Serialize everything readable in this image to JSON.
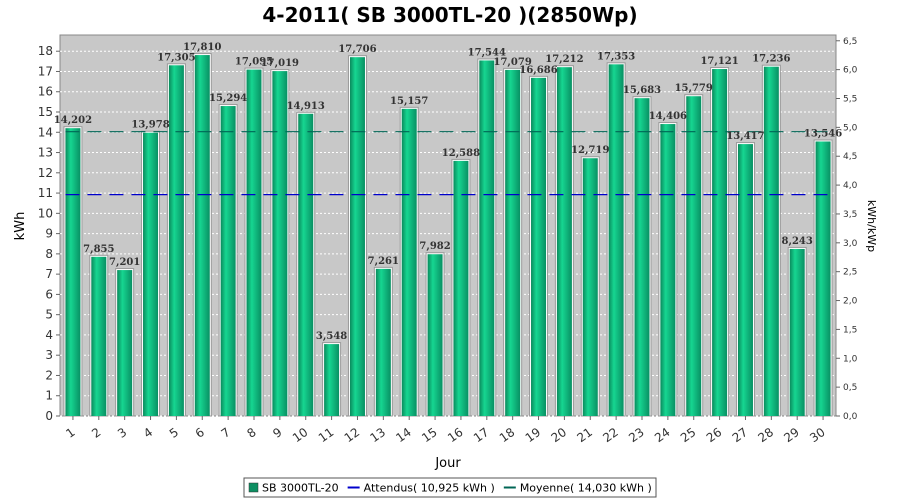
{
  "chart_data": {
    "type": "bar",
    "title": "4-2011( SB 3000TL-20 )(2850Wp)",
    "xlabel": "Jour",
    "ylabel": "kWh",
    "y2label": "kWh/kWp",
    "categories": [
      "1",
      "2",
      "3",
      "4",
      "5",
      "6",
      "7",
      "8",
      "9",
      "10",
      "11",
      "12",
      "13",
      "14",
      "15",
      "16",
      "17",
      "18",
      "19",
      "20",
      "21",
      "22",
      "23",
      "24",
      "25",
      "26",
      "27",
      "28",
      "29",
      "30"
    ],
    "series": [
      {
        "name": "SB 3000TL-20",
        "values": [
          14.202,
          7.855,
          7.201,
          13.978,
          17.305,
          17.81,
          15.294,
          17.095,
          17.019,
          14.913,
          3.548,
          17.706,
          7.261,
          15.157,
          7.982,
          12.588,
          17.544,
          17.079,
          16.686,
          17.212,
          12.719,
          17.353,
          15.683,
          14.406,
          15.779,
          17.121,
          13.417,
          17.236,
          8.243,
          13.546
        ],
        "color": "#0db37a"
      }
    ],
    "value_labels": [
      "14,202",
      "7,855",
      "7,201",
      "13,978",
      "17,305",
      "17,810",
      "15,294",
      "17,095",
      "17,019",
      "14,913",
      "3,548",
      "17,706",
      "7,261",
      "15,157",
      "7,982",
      "12,588",
      "17,544",
      "17,079",
      "16,686",
      "17,212",
      "12,719",
      "17,353",
      "15,683",
      "14,406",
      "15,779",
      "17,121",
      "13,417",
      "17,236",
      "8,243",
      "13,546"
    ],
    "reference_lines": [
      {
        "name": "Attendus",
        "value": 10.925,
        "color": "#0000cc"
      },
      {
        "name": "Moyenne",
        "value": 14.03,
        "color": "#006655"
      }
    ],
    "legend": [
      {
        "label": "SB 3000TL-20",
        "kind": "box",
        "color": "#0d8f62"
      },
      {
        "label": "Attendus( 10,925 kWh )",
        "kind": "line",
        "color": "#0000cc"
      },
      {
        "label": "Moyenne( 14,030 kWh )",
        "kind": "line",
        "color": "#006655"
      }
    ],
    "legend_position": "bottom",
    "ylim": [
      0,
      18.8
    ],
    "yticks": [
      "0",
      "1",
      "2",
      "3",
      "4",
      "5",
      "6",
      "7",
      "8",
      "9",
      "10",
      "11",
      "12",
      "13",
      "14",
      "15",
      "16",
      "17",
      "18"
    ],
    "y2lim": [
      0,
      6.6
    ],
    "y2ticks": [
      "0,0",
      "0,5",
      "1,0",
      "1,5",
      "2,0",
      "2,5",
      "3,0",
      "3,5",
      "4,0",
      "4,5",
      "5,0",
      "5,5",
      "6,0",
      "6,5"
    ],
    "grid": true,
    "plot_background": "#c8c8c8"
  }
}
